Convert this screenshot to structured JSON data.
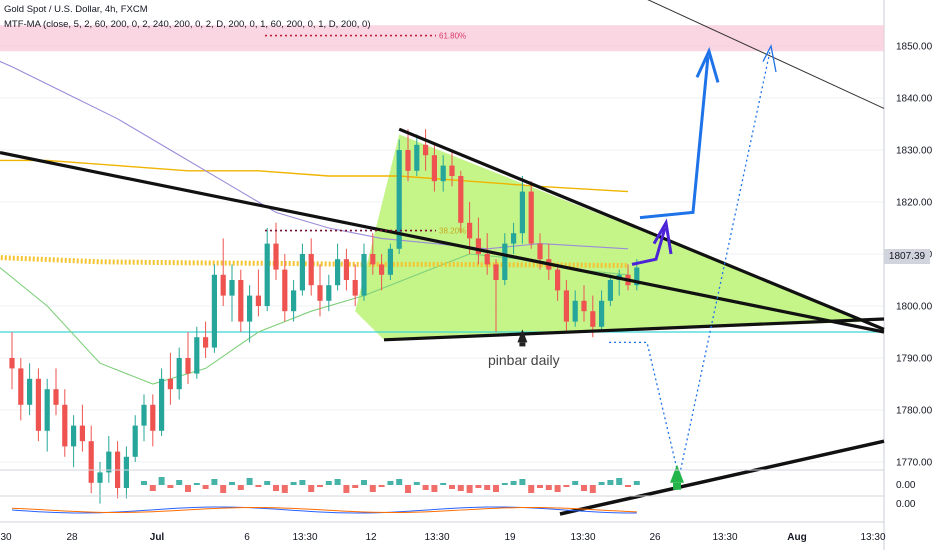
{
  "header": {
    "title": "Gold Spot / U.S. Dollar, 4h, FXCM",
    "indicator": "MTF-MA (close, 5, 2, 60, 200, 0, 2, 240, 200, 0, 2, D, 200, 0, 1, 60, 200, 0, 1, D, 200, 0)"
  },
  "annotations": {
    "fib_618": "61.80%",
    "fib_382": "38.20%",
    "pinbar": "pinbar daily"
  },
  "current_price": "1807.39",
  "colors": {
    "bull": "#26a69a",
    "bear": "#ef5350",
    "triangle_fill": "#b7f36b",
    "ma_gold": "#f0b400",
    "ma_purple": "#9c8bd8",
    "ma_green": "#7ed07a",
    "arrow_blue": "#1e73e8",
    "arrow_purple": "#4b22d6",
    "zone_pink": "#f8c8d8",
    "support_cyan": "#3fd6d6"
  },
  "chart_data": {
    "type": "candlestick",
    "symbol": "Gold Spot / U.S. Dollar",
    "interval": "4h",
    "ylim": [
      1761,
      1856
    ],
    "y_ticks": [
      1770,
      1780,
      1790,
      1800,
      1810,
      1820,
      1830,
      1840,
      1850
    ],
    "x_ticks": [
      "30",
      "28",
      "Jul",
      "6",
      "13:30",
      "12",
      "13:30",
      "19",
      "13:30",
      "26",
      "13:30",
      "Aug",
      "13:30"
    ],
    "candles": [
      [
        1790.0,
        1795.0,
        1784.0,
        1788.0
      ],
      [
        1788.0,
        1790.0,
        1778.0,
        1781.0
      ],
      [
        1781.0,
        1789.0,
        1779.0,
        1786.0
      ],
      [
        1786.0,
        1788.0,
        1774.0,
        1776.0
      ],
      [
        1776.0,
        1786.0,
        1772.0,
        1784.0
      ],
      [
        1784.0,
        1788.0,
        1779.0,
        1781.0
      ],
      [
        1781.0,
        1784.0,
        1771.0,
        1773.0
      ],
      [
        1773.0,
        1779.0,
        1769.0,
        1777.0
      ],
      [
        1777.0,
        1781.0,
        1772.0,
        1774.0
      ],
      [
        1774.0,
        1777.0,
        1764.0,
        1766.0
      ],
      [
        1766.0,
        1770.0,
        1762.0,
        1768.0
      ],
      [
        1768.0,
        1775.0,
        1766.0,
        1772.0
      ],
      [
        1772.0,
        1774.0,
        1763.0,
        1765.0
      ],
      [
        1765.0,
        1773.0,
        1763.0,
        1771.0
      ],
      [
        1771.0,
        1779.0,
        1770.0,
        1777.0
      ],
      [
        1777.0,
        1783.0,
        1774.0,
        1781.0
      ],
      [
        1781.0,
        1783.0,
        1773.0,
        1776.0
      ],
      [
        1776.0,
        1788.0,
        1775.0,
        1786.0
      ],
      [
        1786.0,
        1791.0,
        1781.0,
        1784.0
      ],
      [
        1784.0,
        1792.0,
        1782.0,
        1790.0
      ],
      [
        1790.0,
        1795.0,
        1785.0,
        1787.0
      ],
      [
        1787.0,
        1796.0,
        1786.0,
        1794.0
      ],
      [
        1794.0,
        1797.0,
        1790.0,
        1792.0
      ],
      [
        1792.0,
        1808.0,
        1791.0,
        1806.0
      ],
      [
        1806.0,
        1813.0,
        1800.0,
        1802.0
      ],
      [
        1802.0,
        1808.0,
        1797.0,
        1805.0
      ],
      [
        1805.0,
        1807.0,
        1795.0,
        1797.0
      ],
      [
        1797.0,
        1804.0,
        1793.0,
        1802.0
      ],
      [
        1802.0,
        1807.0,
        1798.0,
        1800.0
      ],
      [
        1800.0,
        1815.0,
        1799.0,
        1812.0
      ],
      [
        1812.0,
        1816.0,
        1805.0,
        1807.0
      ],
      [
        1807.0,
        1810.0,
        1797.0,
        1799.0
      ],
      [
        1799.0,
        1805.0,
        1797.0,
        1803.0
      ],
      [
        1803.0,
        1812.0,
        1802.0,
        1810.0
      ],
      [
        1810.0,
        1813.0,
        1802.0,
        1804.0
      ],
      [
        1804.0,
        1808.0,
        1798.0,
        1801.0
      ],
      [
        1801.0,
        1806.0,
        1799.0,
        1804.0
      ],
      [
        1804.0,
        1812.0,
        1803.0,
        1809.0
      ],
      [
        1809.0,
        1811.0,
        1803.0,
        1805.0
      ],
      [
        1805.0,
        1808.0,
        1800.0,
        1802.0
      ],
      [
        1802.0,
        1812.0,
        1801.0,
        1810.0
      ],
      [
        1810.0,
        1814.0,
        1806.0,
        1808.0
      ],
      [
        1808.0,
        1810.0,
        1803.0,
        1806.0
      ],
      [
        1806.0,
        1812.0,
        1805.0,
        1811.0
      ],
      [
        1811.0,
        1832.0,
        1810.0,
        1830.0
      ],
      [
        1830.0,
        1834.0,
        1824.0,
        1826.0
      ],
      [
        1826.0,
        1833.0,
        1825.0,
        1831.0
      ],
      [
        1831.0,
        1834.0,
        1826.0,
        1829.0
      ],
      [
        1829.0,
        1831.0,
        1822.0,
        1824.0
      ],
      [
        1824.0,
        1829.0,
        1822.0,
        1827.0
      ],
      [
        1827.0,
        1830.0,
        1823.0,
        1825.0
      ],
      [
        1825.0,
        1826.0,
        1814.0,
        1816.0
      ],
      [
        1816.0,
        1820.0,
        1810.0,
        1813.0
      ],
      [
        1813.0,
        1817.0,
        1808.0,
        1810.0
      ],
      [
        1810.0,
        1814.0,
        1806.0,
        1808.0
      ],
      [
        1808.0,
        1809.0,
        1795.0,
        1805.0
      ],
      [
        1805.0,
        1814.0,
        1804.0,
        1812.0
      ],
      [
        1812.0,
        1816.0,
        1810.0,
        1814.0
      ],
      [
        1814.0,
        1825.0,
        1812.0,
        1822.0
      ],
      [
        1822.0,
        1824.0,
        1811.0,
        1812.0
      ],
      [
        1812.0,
        1814.0,
        1807.0,
        1809.0
      ],
      [
        1809.0,
        1812.0,
        1805.0,
        1807.0
      ],
      [
        1807.0,
        1808.0,
        1801.0,
        1803.0
      ],
      [
        1803.0,
        1805.0,
        1795.0,
        1797.0
      ],
      [
        1797.0,
        1803.0,
        1796.0,
        1801.0
      ],
      [
        1801.0,
        1804.0,
        1797.0,
        1799.0
      ],
      [
        1799.0,
        1802.0,
        1794.0,
        1796.0
      ],
      [
        1796.0,
        1803.0,
        1795.0,
        1801.0
      ],
      [
        1801.0,
        1806.0,
        1800.0,
        1805.0
      ],
      [
        1805.0,
        1807.0,
        1802.0,
        1806.0
      ],
      [
        1806.0,
        1808.0,
        1803.0,
        1804.0
      ],
      [
        1804.0,
        1809.0,
        1803.0,
        1807.4
      ]
    ],
    "series": [
      {
        "style": "ma-gold",
        "x": [
          -4,
          4,
          12,
          20,
          28,
          36,
          44,
          52,
          60,
          70
        ],
        "y": [
          1828,
          1828,
          1827,
          1826,
          1826,
          1825,
          1825,
          1824,
          1823,
          1822
        ]
      },
      {
        "style": "ma-purple",
        "x": [
          -4,
          0,
          6,
          12,
          18,
          24,
          30,
          36,
          42,
          48,
          54,
          60,
          70
        ],
        "y": [
          1849,
          1846,
          1841,
          1836,
          1830,
          1824,
          1818,
          1815,
          1813,
          1812,
          1811,
          1812,
          1811
        ]
      },
      {
        "style": "ma-green",
        "x": [
          -4,
          4,
          10,
          16,
          22,
          28,
          34,
          40,
          46,
          52,
          58,
          64,
          70
        ],
        "y": [
          1811,
          1800,
          1789,
          1785,
          1788,
          1795,
          1799,
          1802,
          1806,
          1810,
          1809,
          1807,
          1806
        ]
      },
      {
        "style": "ma-dots",
        "x": [
          -4,
          10,
          20,
          30,
          40,
          50,
          60,
          70
        ],
        "y": [
          1809.5,
          1808.5,
          1808.3,
          1808.2,
          1808.0,
          1808.0,
          1807.9,
          1807.8
        ]
      }
    ]
  }
}
